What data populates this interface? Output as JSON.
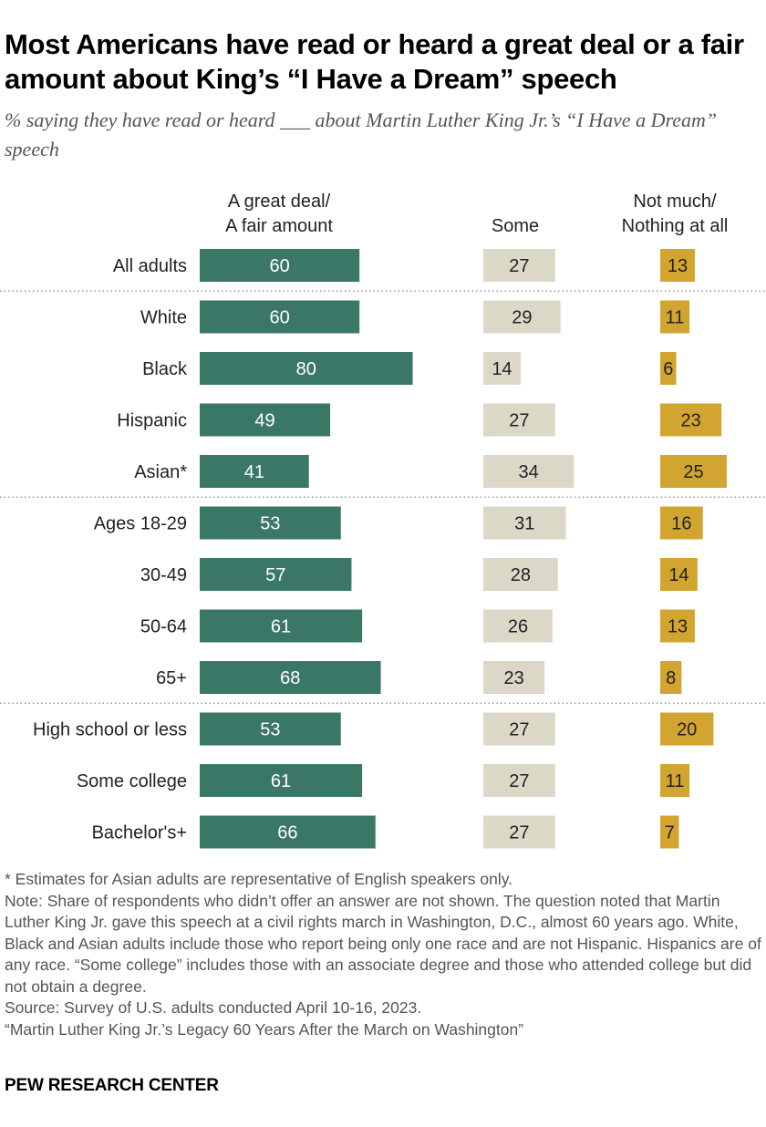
{
  "title": "Most Americans have read or heard a great deal or a fair amount about King’s “I Have a Dream” speech",
  "subtitle": "% saying they have read or heard ___ about Martin Luther King Jr.’s “I Have a Dream” speech",
  "chart_data": {
    "type": "bar",
    "orientation": "horizontal",
    "categories": [
      "All adults",
      "White",
      "Black",
      "Hispanic",
      "Asian*",
      "Ages 18-29",
      "30-49",
      "50-64",
      "65+",
      "High school or less",
      "Some college",
      "Bachelor's+"
    ],
    "groups_separated_after": [
      "All adults",
      "Asian*",
      "65+"
    ],
    "series": [
      {
        "name": "A great deal/ A fair amount",
        "color": "#3a7767",
        "values": [
          60,
          60,
          80,
          49,
          41,
          53,
          57,
          61,
          68,
          53,
          61,
          66
        ]
      },
      {
        "name": "Some",
        "color": "#dcd8c8",
        "values": [
          27,
          29,
          14,
          27,
          34,
          31,
          28,
          26,
          23,
          27,
          27,
          27
        ]
      },
      {
        "name": "Not much/ Nothing at all",
        "color": "#d2a530",
        "values": [
          13,
          11,
          6,
          23,
          25,
          16,
          14,
          13,
          8,
          20,
          11,
          7
        ]
      }
    ],
    "grid": false,
    "legend": "column headers"
  },
  "column_headers": [
    "A great deal/\nA fair amount",
    "Some",
    "Not much/\nNothing at all"
  ],
  "notes": [
    "* Estimates for Asian adults are representative of English speakers only.",
    "Note: Share of respondents who didn’t offer an answer are not shown. The question noted that Martin Luther King Jr. gave this speech at a civil rights march in Washington, D.C., almost 60 years ago. White, Black and Asian adults include those who report being only one race and are not Hispanic. Hispanics are of any race. “Some college” includes those with an associate degree and those who attended college but did not obtain a degree.",
    "Source: Survey of U.S. adults conducted April 10-16, 2023.",
    "“Martin Luther King Jr.’s Legacy 60 Years After the March on Washington”"
  ],
  "logo": "PEW RESEARCH CENTER"
}
